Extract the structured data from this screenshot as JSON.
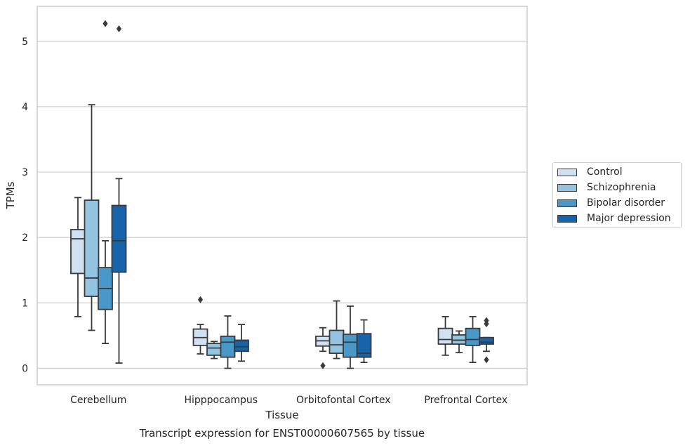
{
  "chart_data": {
    "type": "box",
    "xlabel": "Tissue",
    "ylabel": "TPMs",
    "caption": "Transcript expression for ENST00000607565 by tissue",
    "ylim": [
      -0.25,
      5.55
    ],
    "yticks": [
      0,
      1,
      2,
      3,
      4,
      5
    ],
    "grid": "horizontal",
    "legend_position": "right",
    "categories": [
      "Cerebellum",
      "Hipppocampus",
      "Orbitofontal Cortex",
      "Prefrontal Cortex"
    ],
    "series": [
      {
        "name": "Control",
        "color": "#d0e1f2",
        "boxes": [
          {
            "whislo": 0.79,
            "q1": 1.45,
            "med": 1.98,
            "q3": 2.12,
            "whishi": 2.61,
            "fliers": []
          },
          {
            "whislo": 0.22,
            "q1": 0.35,
            "med": 0.47,
            "q3": 0.6,
            "whishi": 0.67,
            "fliers": [
              1.05
            ]
          },
          {
            "whislo": 0.26,
            "q1": 0.34,
            "med": 0.42,
            "q3": 0.49,
            "whishi": 0.62,
            "fliers": [
              0.04
            ]
          },
          {
            "whislo": 0.2,
            "q1": 0.37,
            "med": 0.44,
            "q3": 0.61,
            "whishi": 0.79,
            "fliers": []
          }
        ]
      },
      {
        "name": "Schizophrenia",
        "color": "#94c4df",
        "boxes": [
          {
            "whislo": 0.58,
            "q1": 1.1,
            "med": 1.38,
            "q3": 2.57,
            "whishi": 4.03,
            "fliers": []
          },
          {
            "whislo": 0.15,
            "q1": 0.2,
            "med": 0.31,
            "q3": 0.38,
            "whishi": 0.41,
            "fliers": []
          },
          {
            "whislo": 0.15,
            "q1": 0.23,
            "med": 0.36,
            "q3": 0.58,
            "whishi": 1.03,
            "fliers": []
          },
          {
            "whislo": 0.24,
            "q1": 0.37,
            "med": 0.43,
            "q3": 0.51,
            "whishi": 0.57,
            "fliers": []
          }
        ]
      },
      {
        "name": "Bipolar disorder",
        "color": "#4a98c9",
        "boxes": [
          {
            "whislo": 0.38,
            "q1": 0.9,
            "med": 1.22,
            "q3": 1.54,
            "whishi": 1.95,
            "fliers": [
              5.27
            ]
          },
          {
            "whislo": 0.0,
            "q1": 0.17,
            "med": 0.4,
            "q3": 0.49,
            "whishi": 0.8,
            "fliers": []
          },
          {
            "whislo": 0.0,
            "q1": 0.17,
            "med": 0.4,
            "q3": 0.52,
            "whishi": 0.95,
            "fliers": []
          },
          {
            "whislo": 0.09,
            "q1": 0.35,
            "med": 0.44,
            "q3": 0.61,
            "whishi": 0.79,
            "fliers": []
          }
        ]
      },
      {
        "name": "Major depression",
        "color": "#1764ab",
        "boxes": [
          {
            "whislo": 0.08,
            "q1": 1.47,
            "med": 1.95,
            "q3": 2.49,
            "whishi": 2.9,
            "fliers": [
              5.19
            ]
          },
          {
            "whislo": 0.11,
            "q1": 0.26,
            "med": 0.33,
            "q3": 0.43,
            "whishi": 0.67,
            "fliers": []
          },
          {
            "whislo": 0.09,
            "q1": 0.17,
            "med": 0.23,
            "q3": 0.53,
            "whishi": 0.74,
            "fliers": []
          },
          {
            "whislo": 0.26,
            "q1": 0.37,
            "med": 0.4,
            "q3": 0.47,
            "whishi": 0.47,
            "fliers": [
              0.73,
              0.68,
              0.13
            ]
          }
        ]
      }
    ]
  }
}
